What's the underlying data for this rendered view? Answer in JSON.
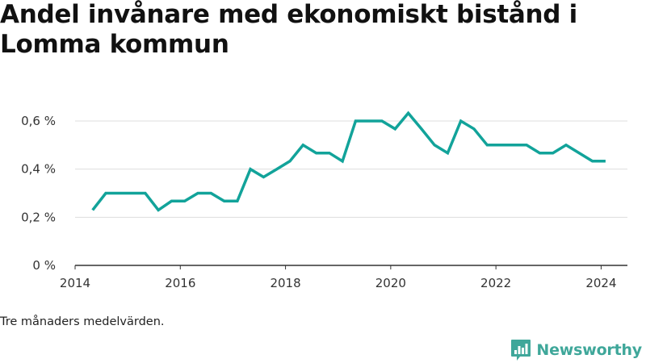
{
  "title": "Andel invånare med ekonomiskt bistånd i Lomma kommun",
  "caption": "Tre månaders medelvärden.",
  "brand": {
    "name": "Newsworthy",
    "icon": "bar-chart-speech-bubble-icon",
    "color": "#3fa79a"
  },
  "colors": {
    "line": "#12a39a",
    "grid": "#dddddd",
    "axis": "#333333"
  },
  "chart_data": {
    "type": "line",
    "title": "Andel invånare med ekonomiskt bistånd i Lomma kommun",
    "xlabel": "",
    "ylabel": "",
    "x_ticks": [
      "2014",
      "2016",
      "2018",
      "2020",
      "2022",
      "2024"
    ],
    "y_ticks": [
      "0 %",
      "0,2 %",
      "0,4 %",
      "0,6 %"
    ],
    "xlim": [
      2014,
      2024.5
    ],
    "ylim": [
      0,
      0.6
    ],
    "grid": true,
    "series": [
      {
        "x": [
          "2014-05",
          "2014-08",
          "2014-11",
          "2015-02",
          "2015-05",
          "2015-08",
          "2015-11",
          "2016-02",
          "2016-05",
          "2016-08",
          "2016-11",
          "2017-02",
          "2017-05",
          "2017-08",
          "2017-11",
          "2018-02",
          "2018-05",
          "2018-08",
          "2018-11",
          "2019-02",
          "2019-05",
          "2019-08",
          "2019-11",
          "2020-02",
          "2020-05",
          "2020-08",
          "2020-11",
          "2021-02",
          "2021-05",
          "2021-08",
          "2021-11",
          "2022-02",
          "2022-05",
          "2022-08",
          "2022-11",
          "2023-02",
          "2023-05",
          "2023-08",
          "2023-11",
          "2024-02"
        ],
        "values": [
          0.23,
          0.3,
          0.3,
          0.3,
          0.3,
          0.23,
          0.267,
          0.267,
          0.3,
          0.3,
          0.267,
          0.267,
          0.4,
          0.367,
          0.4,
          0.433,
          0.5,
          0.467,
          0.467,
          0.433,
          0.6,
          0.6,
          0.6,
          0.567,
          0.633,
          0.567,
          0.5,
          0.467,
          0.6,
          0.567,
          0.5,
          0.5,
          0.5,
          0.5,
          0.467,
          0.467,
          0.5,
          0.467,
          0.433,
          0.433
        ]
      }
    ]
  }
}
